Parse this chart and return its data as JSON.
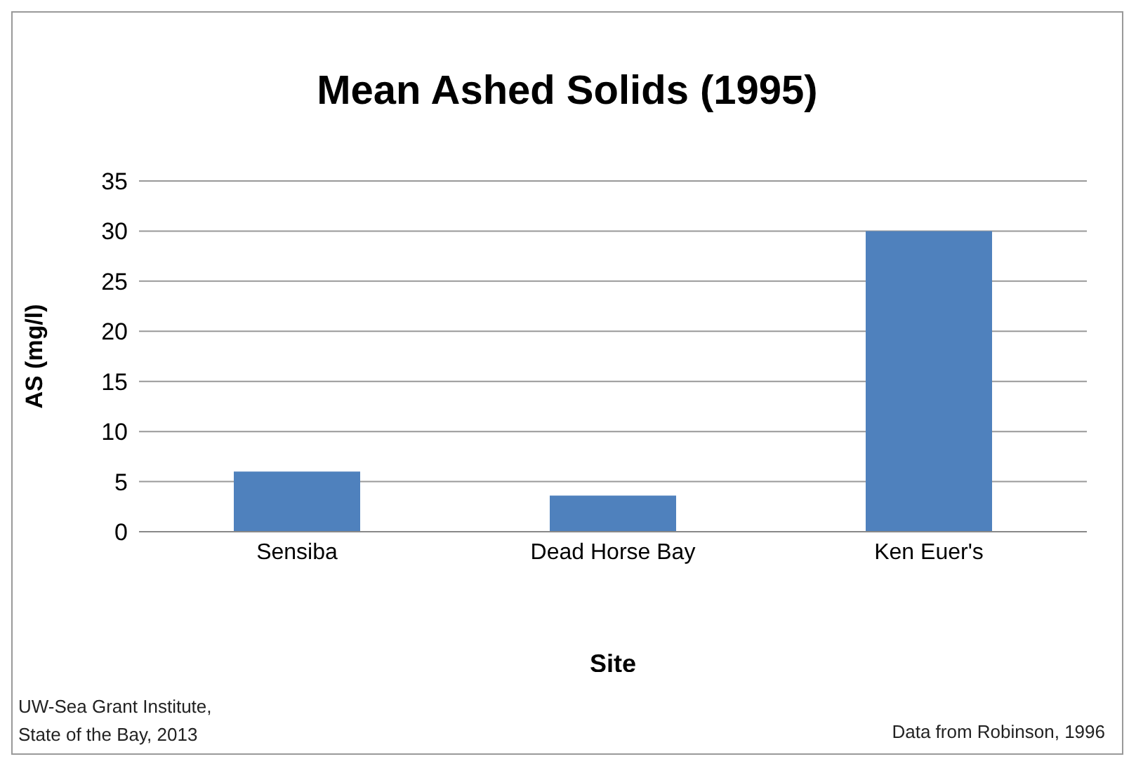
{
  "chart_data": {
    "type": "bar",
    "title": "Mean Ashed Solids (1995)",
    "xlabel": "Site",
    "ylabel": "AS (mg/l)",
    "categories": [
      "Sensiba",
      "Dead Horse Bay",
      "Ken Euer's"
    ],
    "values": [
      6,
      3.6,
      30
    ],
    "color": "#4f81bd",
    "ylim": [
      0,
      35
    ],
    "yticks": [
      0,
      5,
      10,
      15,
      20,
      25,
      30,
      35
    ],
    "grid": "y",
    "annotations": [
      "UW-Sea Grant Institute, State of the Bay, 2013",
      "Data from Robinson, 1996"
    ]
  }
}
